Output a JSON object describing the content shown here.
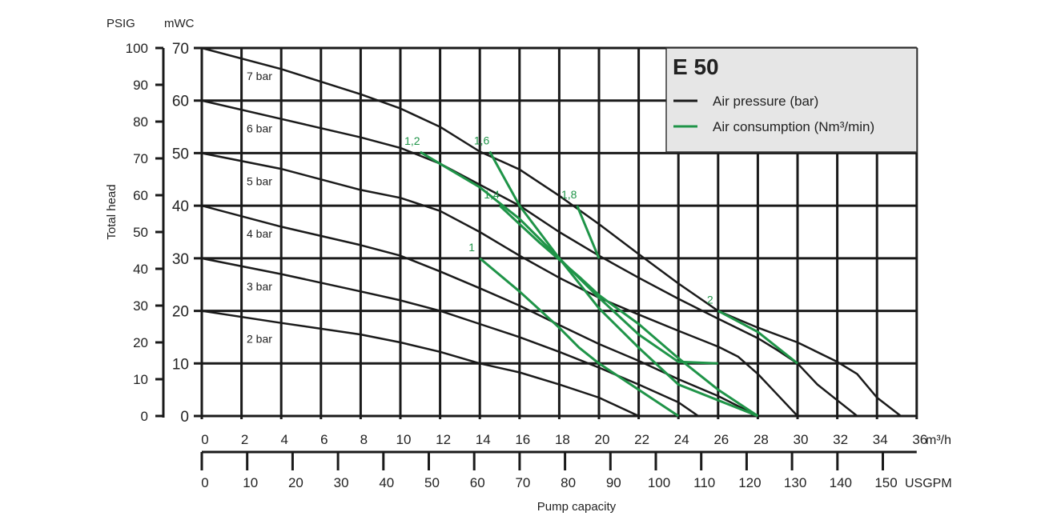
{
  "chart_data": {
    "type": "line",
    "title": "E 50",
    "ylabel": "Total head",
    "xlabel": "Pump capacity",
    "y_units": {
      "left_outer": "PSIG",
      "left_inner": "mWC"
    },
    "x_units": {
      "primary": "m³/h",
      "secondary": "USGPM"
    },
    "xlim": [
      0,
      36
    ],
    "ylim": [
      0,
      70
    ],
    "psig_lim": [
      0,
      100
    ],
    "x_ticks": [
      0,
      2,
      4,
      6,
      8,
      10,
      12,
      14,
      16,
      18,
      20,
      22,
      24,
      26,
      28,
      30,
      32,
      34,
      36
    ],
    "usgpm_ticks": [
      0,
      10,
      20,
      30,
      40,
      50,
      60,
      70,
      80,
      90,
      100,
      110,
      120,
      130,
      140,
      150
    ],
    "mwc_ticks": [
      0,
      10,
      20,
      30,
      40,
      50,
      60,
      70
    ],
    "psig_ticks": [
      0,
      10,
      20,
      30,
      40,
      50,
      60,
      70,
      80,
      90,
      100
    ],
    "grid": true,
    "legend": {
      "placement": "top-right",
      "entries": [
        {
          "label": "Air pressure (bar)",
          "color": "#1a1a1a"
        },
        {
          "label": "Air consumption (Nm³/min)",
          "color": "#1f9448"
        }
      ]
    },
    "pressure_series": [
      {
        "name": "7 bar",
        "points": [
          [
            0,
            70
          ],
          [
            4,
            66
          ],
          [
            8,
            61.2
          ],
          [
            10,
            58.5
          ],
          [
            12,
            55
          ],
          [
            14,
            50.3
          ],
          [
            16,
            46.9
          ],
          [
            18,
            41.9
          ],
          [
            20,
            36.5
          ],
          [
            22,
            30.8
          ],
          [
            24,
            25.2
          ],
          [
            26,
            20
          ],
          [
            28,
            16.8
          ],
          [
            30,
            14
          ],
          [
            32,
            10.3
          ],
          [
            33,
            8
          ],
          [
            34,
            3.5
          ],
          [
            35.2,
            0
          ]
        ]
      },
      {
        "name": "6 bar",
        "points": [
          [
            0,
            60
          ],
          [
            4,
            56.5
          ],
          [
            8,
            53
          ],
          [
            10,
            51
          ],
          [
            12,
            48
          ],
          [
            14,
            44
          ],
          [
            16,
            40
          ],
          [
            18,
            35
          ],
          [
            20,
            30.5
          ],
          [
            22,
            26.3
          ],
          [
            24,
            22.3
          ],
          [
            26,
            18.5
          ],
          [
            28,
            14.8
          ],
          [
            29,
            12.5
          ],
          [
            30,
            10
          ],
          [
            31,
            6
          ],
          [
            32,
            3
          ],
          [
            33,
            0
          ]
        ]
      },
      {
        "name": "5 bar",
        "points": [
          [
            0,
            50
          ],
          [
            4,
            47
          ],
          [
            8,
            43
          ],
          [
            10,
            41.5
          ],
          [
            12,
            39
          ],
          [
            14,
            35
          ],
          [
            16,
            30.5
          ],
          [
            18,
            26.3
          ],
          [
            20,
            22.5
          ],
          [
            22,
            19.3
          ],
          [
            24,
            16.2
          ],
          [
            26,
            13.2
          ],
          [
            27,
            11.3
          ],
          [
            28,
            8
          ],
          [
            29,
            4
          ],
          [
            30,
            0
          ]
        ]
      },
      {
        "name": "4 bar",
        "points": [
          [
            0,
            40
          ],
          [
            4,
            36
          ],
          [
            8,
            32.5
          ],
          [
            10,
            30.5
          ],
          [
            12,
            27.5
          ],
          [
            14,
            24.3
          ],
          [
            16,
            21
          ],
          [
            18,
            17.3
          ],
          [
            20,
            13.7
          ],
          [
            22,
            10.5
          ],
          [
            24,
            7
          ],
          [
            26,
            3.8
          ],
          [
            28,
            0
          ]
        ]
      },
      {
        "name": "3 bar",
        "points": [
          [
            0,
            30
          ],
          [
            4,
            27
          ],
          [
            8,
            23.7
          ],
          [
            10,
            22
          ],
          [
            12,
            20
          ],
          [
            14,
            17.5
          ],
          [
            16,
            15
          ],
          [
            18,
            12.2
          ],
          [
            20,
            9.2
          ],
          [
            22,
            6
          ],
          [
            24,
            2.6
          ],
          [
            25,
            0
          ]
        ]
      },
      {
        "name": "2 bar",
        "points": [
          [
            0,
            20
          ],
          [
            4,
            17.7
          ],
          [
            8,
            15.5
          ],
          [
            10,
            14
          ],
          [
            12,
            12.2
          ],
          [
            14,
            10
          ],
          [
            16,
            8.3
          ],
          [
            18,
            6
          ],
          [
            20,
            3.5
          ],
          [
            22,
            0
          ]
        ]
      }
    ],
    "consumption_series": [
      {
        "name": "1",
        "points": [
          [
            14,
            30
          ],
          [
            16,
            23.7
          ],
          [
            18,
            16.8
          ],
          [
            19,
            13
          ],
          [
            20,
            10
          ],
          [
            22,
            5
          ],
          [
            24,
            0
          ]
        ]
      },
      {
        "name": "1,2",
        "points": [
          [
            11,
            50.2
          ],
          [
            14,
            43.5
          ],
          [
            16,
            37.5
          ],
          [
            18,
            30
          ],
          [
            20,
            22.5
          ],
          [
            22,
            15.5
          ],
          [
            24,
            10.3
          ],
          [
            26,
            10
          ]
        ]
      },
      {
        "name": "1,4",
        "points": [
          [
            15,
            40
          ],
          [
            17,
            33
          ],
          [
            19,
            26.5
          ],
          [
            20,
            23
          ],
          [
            22,
            17.5
          ],
          [
            24,
            11
          ],
          [
            26,
            5
          ],
          [
            28,
            0
          ]
        ]
      },
      {
        "name": "1,6",
        "points": [
          [
            14.5,
            50.3
          ],
          [
            16,
            40
          ],
          [
            18,
            30
          ],
          [
            20,
            20.5
          ],
          [
            22,
            13
          ],
          [
            24,
            6
          ],
          [
            26,
            3
          ],
          [
            28,
            0
          ]
        ]
      },
      {
        "name": "1,8",
        "points": [
          [
            18.9,
            40
          ],
          [
            20,
            30
          ]
        ]
      },
      {
        "name": "2",
        "points": [
          [
            26,
            20
          ],
          [
            28,
            16
          ],
          [
            30,
            10
          ]
        ]
      }
    ]
  }
}
